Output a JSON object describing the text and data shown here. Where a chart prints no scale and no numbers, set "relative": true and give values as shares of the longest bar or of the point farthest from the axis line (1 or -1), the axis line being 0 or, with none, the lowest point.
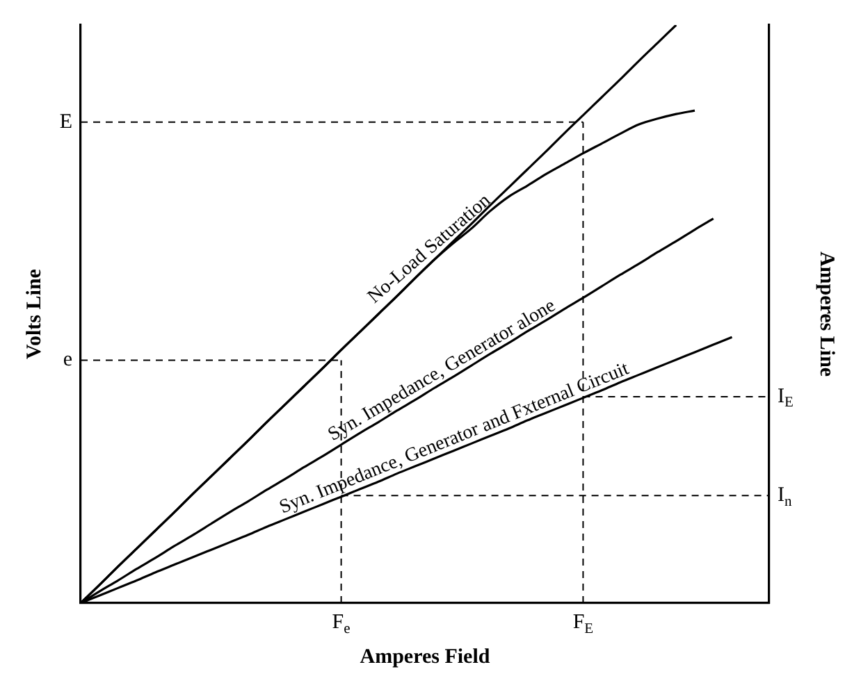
{
  "chart_data": {
    "type": "line",
    "relative": true,
    "xlabel": "Amperes Field",
    "ylabel": "Volts Line",
    "y2label": "Amperes Line",
    "categories": [
      null,
      null,
      null,
      null,
      null,
      null,
      null,
      null,
      null,
      null,
      null,
      null,
      null,
      null,
      "F$_{e}$",
      null,
      null,
      null,
      null,
      null,
      null,
      null,
      null,
      null,
      null,
      null,
      null,
      "F$_{E}$",
      null,
      null,
      null,
      null,
      null,
      null,
      null,
      null,
      null,
      null
    ],
    "grid": false,
    "legend": false,
    "marker": "none",
    "line_style": "solid",
    "series": [
      {
        "color": "#000000",
        "values": [
          0,
          0.031,
          0.063,
          0.094,
          0.125,
          0.156,
          0.188,
          0.219,
          0.25,
          0.281,
          0.313,
          0.344,
          0.375,
          0.406,
          0.438,
          0.469,
          0.5,
          0.531,
          0.563,
          0.594,
          0.625,
          0.656,
          0.688,
          0.719,
          0.75,
          0.781,
          0.813,
          0.844,
          0.875,
          0.906,
          0.938,
          0.969,
          1,
          null,
          null,
          null,
          null,
          null
        ]
      },
      {
        "name": "No-Load Saturation",
        "color": "#000000",
        "values": [
          0,
          0.031,
          0.063,
          0.094,
          0.125,
          0.156,
          0.188,
          0.219,
          0.25,
          0.281,
          0.313,
          0.344,
          0.375,
          0.406,
          0.438,
          0.469,
          0.5,
          0.531,
          0.563,
          0.594,
          0.622,
          0.648,
          0.678,
          0.703,
          0.722,
          0.742,
          0.76,
          0.778,
          0.795,
          0.812,
          0.828,
          0.838,
          0.846,
          0.852,
          null,
          null,
          null,
          null
        ]
      },
      {
        "name": "Syn. Impedance, Generator alone",
        "color": "#000000",
        "values": [
          0,
          0.02,
          0.039,
          0.059,
          0.078,
          0.098,
          0.117,
          0.137,
          0.157,
          0.176,
          0.196,
          0.215,
          0.235,
          0.254,
          0.274,
          0.294,
          0.313,
          0.333,
          0.352,
          0.372,
          0.391,
          0.411,
          0.431,
          0.45,
          0.47,
          0.489,
          0.509,
          0.528,
          0.548,
          0.568,
          0.587,
          0.607,
          0.626,
          0.646,
          0.665,
          null,
          null,
          null
        ]
      },
      {
        "name": "Syn. Impedance, Generator and Fxternal Circuit",
        "color": "#000000",
        "values": [
          0,
          0.013,
          0.026,
          0.039,
          0.053,
          0.066,
          0.079,
          0.092,
          0.105,
          0.118,
          0.132,
          0.145,
          0.158,
          0.171,
          0.184,
          0.197,
          0.21,
          0.224,
          0.237,
          0.25,
          0.263,
          0.276,
          0.289,
          0.302,
          0.316,
          0.329,
          0.342,
          0.355,
          0.368,
          0.382,
          0.395,
          0.408,
          0.421,
          0.434,
          0.447,
          0.46,
          null,
          null
        ]
      }
    ],
    "ref_lines": [
      {
        "axis": "x",
        "value": "F$_{E}$",
        "color": "#000000",
        "line_style": "dashed"
      },
      {
        "axis": "x",
        "value": "F$_{e}$",
        "color": "#000000",
        "line_style": "dashed"
      },
      {
        "axis": "y",
        "value": 0.832,
        "label": "E",
        "color": "#000000",
        "line_style": "dashed"
      },
      {
        "axis": "y",
        "value": 0.42,
        "label": "e",
        "color": "#000000",
        "line_style": "dashed"
      },
      {
        "axis": "y",
        "value": 0.357,
        "label": "I$_{E}$",
        "color": "#000000",
        "line_style": "dashed"
      },
      {
        "axis": "y",
        "value": 0.186,
        "label": "I$_{n}$",
        "color": "#000000",
        "line_style": "dashed"
      }
    ]
  }
}
